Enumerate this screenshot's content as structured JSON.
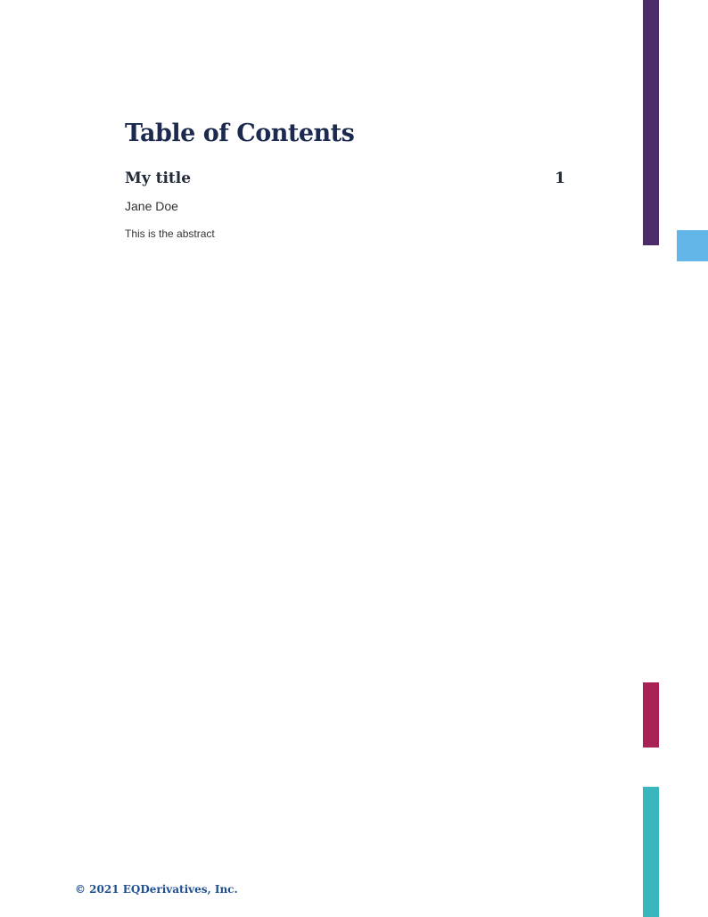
{
  "heading": "Table of Contents",
  "entries": [
    {
      "title": "My title",
      "page": "1",
      "author": "Jane Doe",
      "abstract": "This is the abstract"
    }
  ],
  "footer": "© 2021 EQDerivatives, Inc.",
  "colors": {
    "purple": "#4b2c69",
    "sky": "#63b7e8",
    "crimson": "#a82255",
    "teal": "#38b6bb",
    "heading": "#1b2a4e"
  }
}
